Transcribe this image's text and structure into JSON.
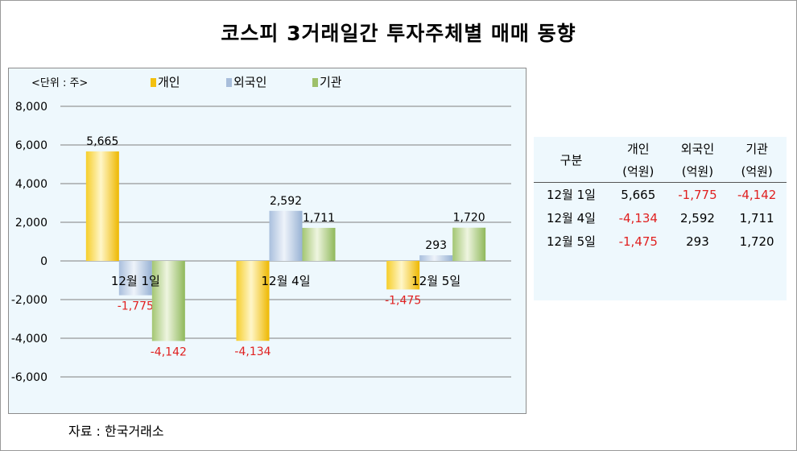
{
  "title": "코스피 3거래일간 투자주체별 매매 동향",
  "unit_label": "<단위 : 주>",
  "source": "자료 : 한국거래소",
  "colors": {
    "individual": "#f3c00f",
    "foreign": "#a8bedb",
    "institution": "#9ec06a",
    "negative_text": "#e02020"
  },
  "chart_data": {
    "type": "bar",
    "categories": [
      "12월 1일",
      "12월 4일",
      "12월 5일"
    ],
    "series": [
      {
        "name": "개인",
        "values": [
          5665,
          -4134,
          -1475
        ],
        "labels": [
          "5,665",
          "-4,134",
          "-1,475"
        ]
      },
      {
        "name": "외국인",
        "values": [
          -1775,
          2592,
          293
        ],
        "labels": [
          "-1,775",
          "2,592",
          "293"
        ]
      },
      {
        "name": "기관",
        "values": [
          -4142,
          1711,
          1720
        ],
        "labels": [
          "-4,142",
          "1,711",
          "1,720"
        ]
      }
    ],
    "ylim": [
      -6000,
      8000
    ],
    "yticks": [
      "8,000",
      "6,000",
      "4,000",
      "2,000",
      "0",
      "-2,000",
      "-4,000",
      "-6,000"
    ],
    "grid": true,
    "legend": "top"
  },
  "table": {
    "header_row1": [
      "구분",
      "개인",
      "외국인",
      "기관"
    ],
    "header_row2": [
      "(억원)",
      "(억원)",
      "(억원)"
    ],
    "rows": [
      {
        "date": "12월 1일",
        "cells": [
          "5,665",
          "-1,775",
          "-4,142"
        ]
      },
      {
        "date": "12월 4일",
        "cells": [
          "-4,134",
          "2,592",
          "1,711"
        ]
      },
      {
        "date": "12월 5일",
        "cells": [
          "-1,475",
          "293",
          "1,720"
        ]
      }
    ]
  }
}
